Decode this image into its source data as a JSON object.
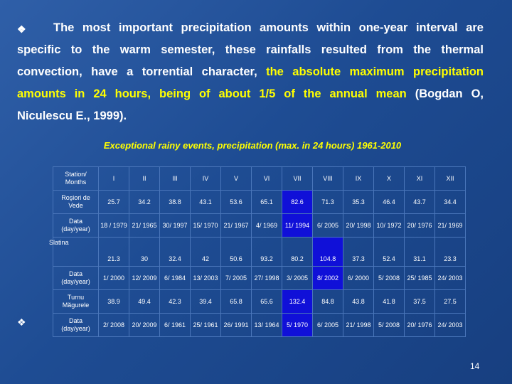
{
  "bullet_symbol": "❖",
  "paragraph": {
    "line1": "The most important precipitation amounts within one-year interval are",
    "line2": "specific to the warm semester, these rainfalls resulted from the thermal",
    "line3a": "convection, have a torrential character, ",
    "line3b": "the absolute maximum precipitation",
    "line4a": "amounts in 24 hours, being of about 1/5 of the annual mean",
    "line4b": " (Bogdan O,",
    "line5": "Niculescu E., 1999)."
  },
  "caption": "Exceptional rainy events, precipitation (max. in 24 hours) 1961-2010",
  "table": {
    "header": [
      "Station/ Months",
      "I",
      "II",
      "III",
      "IV",
      "V",
      "VI",
      "VII",
      "VIII",
      "IX",
      "X",
      "XI",
      "XII"
    ],
    "rows": [
      {
        "label": "Roşiori de Vede",
        "cells": [
          "25.7",
          "34.2",
          "38.8",
          "43.1",
          "53.6",
          "65.1",
          "82.6",
          "71.3",
          "35.3",
          "46.4",
          "43.7",
          "34.4"
        ]
      },
      {
        "label": "Data (day/year)",
        "cells": [
          "18 / 1979",
          "21/ 1965",
          "30/ 1997",
          "15/ 1970",
          "21/ 1967",
          "4/ 1969",
          "11/ 1994",
          "6/ 2005",
          "20/ 1998",
          "10/ 1972",
          "20/ 1976",
          "21/ 1969"
        ]
      },
      {
        "label": "Slatina",
        "cells": [
          "21.3",
          "30",
          "32.4",
          "42",
          "50.6",
          "93.2",
          "80.2",
          "104.8",
          "37.3",
          "52.4",
          "31.1",
          "23.3"
        ]
      },
      {
        "label": "Data (day/year)",
        "cells": [
          "1/ 2000",
          "12/ 2009",
          "6/ 1984",
          "13/ 2003",
          "7/ 2005",
          "27/ 1998",
          "3/ 2005",
          "8/ 2002",
          "6/ 2000",
          "5/ 2008",
          "25/ 1985",
          "24/ 2003"
        ]
      },
      {
        "label": "Turnu Măgurele",
        "cells": [
          "38.9",
          "49.4",
          "42.3",
          "39.4",
          "65.8",
          "65.6",
          "132.4",
          "84.8",
          "43.8",
          "41.8",
          "37.5",
          "27.5"
        ]
      },
      {
        "label": "Data (day/year)",
        "cells": [
          "2/ 2008",
          "20/ 2009",
          "6/ 1961",
          "25/ 1961",
          "26/ 1991",
          "13/ 1964",
          "5/ 1970",
          "6/ 2005",
          "21/ 1998",
          "5/ 2008",
          "20/ 1976",
          "24/ 2003"
        ]
      }
    ],
    "max_highlight_color": "#1010d8"
  },
  "page_number": "14",
  "colors": {
    "background": "#1f4f96",
    "text": "#ffffff",
    "highlight": "#ffff00"
  }
}
